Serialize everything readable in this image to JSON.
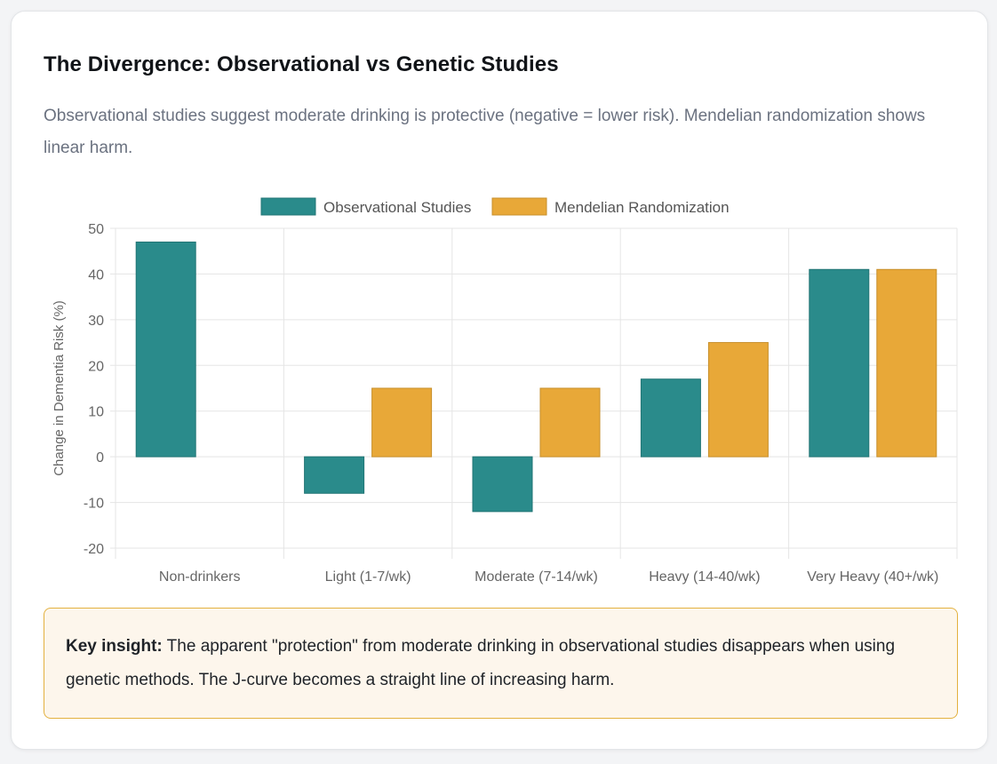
{
  "card": {
    "title": "The Divergence: Observational vs Genetic Studies",
    "subtitle": "Observational studies suggest moderate drinking is protective (negative = lower risk). Mendelian randomization shows linear harm."
  },
  "chart_data": {
    "type": "bar",
    "categories": [
      "Non-drinkers",
      "Light (1-7/wk)",
      "Moderate (7-14/wk)",
      "Heavy (14-40/wk)",
      "Very Heavy (40+/wk)"
    ],
    "series": [
      {
        "name": "Observational Studies",
        "values": [
          47,
          -8,
          -12,
          17,
          41
        ],
        "color": "#2a8b8b"
      },
      {
        "name": "Mendelian Randomization",
        "values": [
          null,
          15,
          15,
          25,
          41
        ],
        "color": "#e8a838"
      }
    ],
    "title": "",
    "xlabel": "",
    "ylabel": "Change in Dementia Risk (%)",
    "ylim": [
      -20,
      50
    ],
    "yticks": [
      50,
      40,
      30,
      20,
      10,
      0,
      -10,
      -20
    ],
    "ytick_labels": [
      "50",
      "40",
      "30",
      "20",
      "10",
      "0",
      "-10",
      "-20"
    ],
    "grid": true,
    "legend": "top-center"
  },
  "insight": {
    "label": "Key insight:",
    "text": " The apparent \"protection\" from moderate drinking in observational studies disappears when using genetic methods. The J-curve becomes a straight line of increasing harm."
  }
}
